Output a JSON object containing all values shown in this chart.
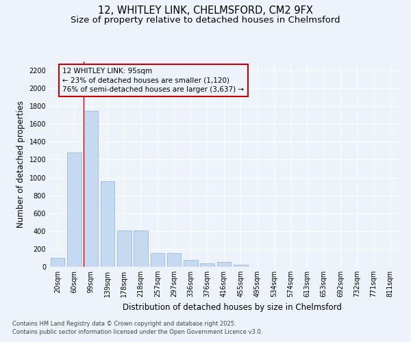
{
  "title1": "12, WHITLEY LINK, CHELMSFORD, CM2 9FX",
  "title2": "Size of property relative to detached houses in Chelmsford",
  "xlabel": "Distribution of detached houses by size in Chelmsford",
  "ylabel": "Number of detached properties",
  "categories": [
    "20sqm",
    "60sqm",
    "99sqm",
    "139sqm",
    "178sqm",
    "218sqm",
    "257sqm",
    "297sqm",
    "336sqm",
    "376sqm",
    "416sqm",
    "455sqm",
    "495sqm",
    "534sqm",
    "574sqm",
    "613sqm",
    "653sqm",
    "692sqm",
    "732sqm",
    "771sqm",
    "811sqm"
  ],
  "values": [
    100,
    1280,
    1750,
    960,
    410,
    410,
    155,
    155,
    75,
    35,
    55,
    20,
    0,
    0,
    0,
    0,
    0,
    0,
    0,
    0,
    0
  ],
  "bar_color": "#c5d9f1",
  "bar_edgecolor": "#8bafd4",
  "vline_x_index": 1.575,
  "vline_color": "#cc0000",
  "annotation_text": "12 WHITLEY LINK: 95sqm\n← 23% of detached houses are smaller (1,120)\n76% of semi-detached houses are larger (3,637) →",
  "annotation_fontsize": 7.5,
  "box_edgecolor": "#cc0000",
  "ylim": [
    0,
    2300
  ],
  "yticks": [
    0,
    200,
    400,
    600,
    800,
    1000,
    1200,
    1400,
    1600,
    1800,
    2000,
    2200
  ],
  "footer1": "Contains HM Land Registry data © Crown copyright and database right 2025.",
  "footer2": "Contains public sector information licensed under the Open Government Licence v3.0.",
  "bg_color": "#eef2fa",
  "grid_color": "#ffffff",
  "title_fontsize": 10.5,
  "subtitle_fontsize": 9.5,
  "tick_fontsize": 7,
  "ylabel_fontsize": 8.5,
  "xlabel_fontsize": 8.5,
  "footer_fontsize": 6.0
}
